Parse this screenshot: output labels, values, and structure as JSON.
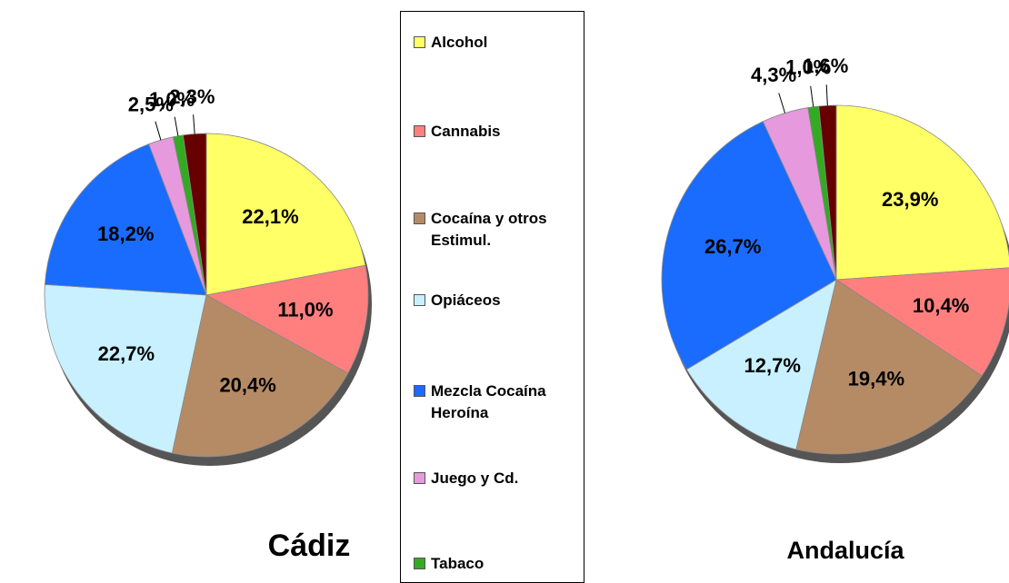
{
  "legend": {
    "categories": [
      "Alcohol",
      "Cannabis",
      "Cocaína y otros Estimul.",
      "Opiáceos",
      "Mezcla Cocaína Heroína",
      "Juego y Cd.",
      "Tabaco",
      null
    ],
    "colors": [
      "#ffff66",
      "#ff7f7f",
      "#b58b66",
      "#c8f0ff",
      "#1a6cff",
      "#e699dd",
      "#33aa22",
      "#660000"
    ]
  },
  "chart_data": [
    {
      "type": "pie",
      "title": "Cádiz",
      "values": [
        22.1,
        11.0,
        20.4,
        22.7,
        18.2,
        2.5,
        1.0,
        2.3
      ],
      "value_labels": [
        "22,1%",
        "11,0%",
        "20,4%",
        "22,7%",
        "18,2%",
        "2,5%",
        "1,0%",
        "2,3%"
      ]
    },
    {
      "type": "pie",
      "title": "Andalucía",
      "values": [
        23.9,
        10.4,
        19.4,
        12.7,
        26.7,
        4.3,
        1.0,
        1.6
      ],
      "value_labels": [
        "23,9%",
        "10,4%",
        "19,4%",
        "12,7%",
        "26,7%",
        "4,3%",
        "1,0%",
        "1,6%"
      ]
    }
  ]
}
